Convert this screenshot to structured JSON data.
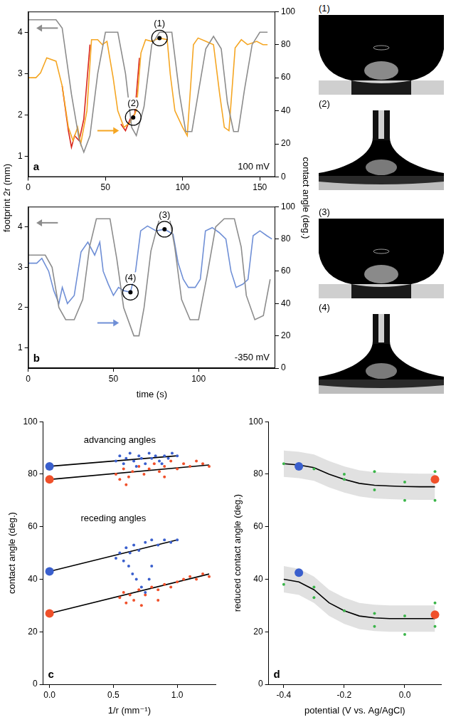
{
  "shared_axis_labels": {
    "y": "footprint 2r (mm)",
    "y2": "contact angle (deg.)"
  },
  "photos": [
    {
      "label": "(1)"
    },
    {
      "label": "(2)"
    },
    {
      "label": "(3)"
    },
    {
      "label": "(4)"
    }
  ],
  "chart_data": [
    {
      "panel": "a",
      "type": "line",
      "grid": false,
      "xlim": [
        0,
        160
      ],
      "xticks": [
        0,
        50,
        100,
        150
      ],
      "ylim": [
        0.5,
        4.5
      ],
      "yticks": [
        1,
        2,
        3,
        4
      ],
      "y2lim": [
        0,
        100
      ],
      "y2ticks": [
        0,
        20,
        40,
        60,
        80,
        100
      ],
      "annotations": [
        {
          "text": "100 mV"
        }
      ],
      "markers": [
        {
          "label": "(1)",
          "x": 85,
          "y": 84,
          "axis": "y2"
        },
        {
          "label": "(2)",
          "x": 68,
          "y": 36,
          "axis": "y2"
        }
      ],
      "series": [
        {
          "color": "#8c8c8c",
          "axis": "y",
          "x": [
            0,
            18,
            22,
            28,
            33,
            36,
            40,
            45,
            50,
            58,
            63,
            67,
            70,
            75,
            80,
            85,
            93,
            98,
            102,
            106,
            110,
            115,
            120,
            125,
            129,
            133,
            136,
            140,
            145,
            150,
            155
          ],
          "values": [
            4.3,
            4.3,
            4.1,
            2.5,
            1.4,
            1.1,
            1.5,
            3.0,
            4.0,
            4.0,
            3.0,
            1.7,
            1.5,
            2.2,
            3.7,
            4.0,
            4.0,
            2.5,
            1.6,
            1.6,
            2.5,
            3.6,
            3.9,
            3.6,
            2.3,
            1.6,
            1.6,
            2.6,
            3.7,
            4.0,
            4.0
          ]
        },
        {
          "color": "#f5a623",
          "axis": "y2",
          "x": [
            0,
            5,
            8,
            12,
            18,
            22,
            26,
            29,
            32,
            34,
            38,
            41,
            45,
            48,
            51,
            55,
            58,
            62,
            66,
            70,
            73,
            76,
            80,
            85,
            90,
            92,
            95,
            100,
            103,
            107,
            110,
            115,
            120,
            124,
            127,
            130,
            134,
            138,
            142,
            148,
            152,
            155
          ],
          "values": [
            60,
            60,
            63,
            72,
            70,
            55,
            30,
            22,
            30,
            20,
            40,
            83,
            83,
            80,
            82,
            60,
            40,
            30,
            33,
            40,
            75,
            83,
            82,
            84,
            83,
            62,
            40,
            30,
            25,
            80,
            84,
            82,
            80,
            50,
            30,
            28,
            78,
            83,
            80,
            82,
            80,
            80
          ]
        },
        {
          "color": "#d9261c",
          "axis": "y2",
          "x": [
            22,
            26,
            28,
            30,
            33,
            36,
            40,
            50,
            60,
            63,
            66,
            69,
            72
          ],
          "values": [
            55,
            28,
            18,
            25,
            22,
            35,
            80,
            null,
            32,
            28,
            35,
            38,
            72
          ]
        }
      ]
    },
    {
      "panel": "b",
      "type": "line",
      "grid": false,
      "x_label": "time (s)",
      "xlim": [
        0,
        145
      ],
      "xticks": [
        0,
        50,
        100
      ],
      "ylim": [
        0.5,
        4.5
      ],
      "yticks": [
        1,
        2,
        3,
        4
      ],
      "y2lim": [
        0,
        100
      ],
      "y2ticks": [
        0,
        20,
        40,
        60,
        80,
        100
      ],
      "annotations": [
        {
          "text": "-350 mV"
        }
      ],
      "markers": [
        {
          "label": "(3)",
          "x": 80,
          "y": 86,
          "axis": "y2"
        },
        {
          "label": "(4)",
          "x": 60,
          "y": 47,
          "axis": "y2"
        }
      ],
      "series": [
        {
          "color": "#8c8c8c",
          "axis": "y",
          "x": [
            0,
            10,
            14,
            18,
            22,
            27,
            32,
            36,
            40,
            48,
            52,
            56,
            62,
            65,
            68,
            72,
            77,
            83,
            86,
            90,
            95,
            100,
            105,
            110,
            115,
            121,
            125,
            128,
            133,
            138,
            142
          ],
          "values": [
            3.3,
            3.3,
            3.0,
            2.0,
            1.7,
            1.7,
            2.2,
            3.5,
            4.2,
            4.2,
            3.2,
            2.0,
            1.3,
            1.3,
            2.0,
            3.4,
            4.2,
            4.2,
            3.5,
            2.2,
            1.7,
            1.7,
            2.8,
            4.0,
            4.2,
            4.2,
            3.5,
            2.3,
            1.7,
            1.8,
            2.7
          ]
        },
        {
          "color": "#6f8fd6",
          "axis": "y2",
          "x": [
            0,
            5,
            8,
            12,
            15,
            18,
            20,
            23,
            27,
            31,
            35,
            39,
            42,
            44,
            47,
            50,
            53,
            56,
            60,
            63,
            66,
            70,
            75,
            80,
            85,
            88,
            91,
            94,
            98,
            101,
            104,
            108,
            112,
            116,
            119,
            122,
            126,
            129,
            132,
            136,
            140,
            143
          ],
          "values": [
            65,
            65,
            68,
            60,
            48,
            40,
            50,
            40,
            45,
            72,
            78,
            70,
            78,
            60,
            52,
            45,
            50,
            48,
            47,
            60,
            85,
            88,
            85,
            86,
            83,
            65,
            55,
            50,
            50,
            55,
            85,
            87,
            84,
            80,
            60,
            50,
            52,
            55,
            82,
            85,
            82,
            80
          ]
        }
      ]
    },
    {
      "panel": "c",
      "type": "scatter",
      "grid": false,
      "x_label": "1/r (mm⁻¹)",
      "y_label": "contact angle (deg.)",
      "xlim": [
        -0.05,
        1.3
      ],
      "xticks": [
        {
          "value": 0,
          "label": "0.0"
        },
        0.5,
        {
          "value": 1,
          "label": "1.0"
        }
      ],
      "ylim": [
        0,
        100
      ],
      "yticks": [
        0,
        20,
        40,
        60,
        80,
        100
      ],
      "annotations": [
        {
          "text": "advancing angles",
          "x": 0.55,
          "y": 93
        },
        {
          "text": "receding angles",
          "x": 0.5,
          "y": 63
        }
      ],
      "series": [
        {
          "type": "scatter",
          "marker": "dot",
          "color": "#3a5fcd",
          "x": [
            0.52,
            0.55,
            0.58,
            0.6,
            0.63,
            0.66,
            0.68,
            0.7,
            0.72,
            0.75,
            0.78,
            0.8,
            0.83,
            0.86,
            0.88,
            0.9,
            0.93,
            0.96,
            1.0
          ],
          "values": [
            85,
            87,
            84,
            86,
            88,
            85,
            83,
            87,
            86,
            84,
            88,
            86,
            87,
            85,
            84,
            87,
            86,
            88,
            87
          ]
        },
        {
          "type": "scatter",
          "marker": "dot",
          "color": "#f0502a",
          "x": [
            0.52,
            0.55,
            0.58,
            0.6,
            0.62,
            0.65,
            0.7,
            0.74,
            0.78,
            0.82,
            0.86,
            0.9,
            0.9,
            0.95,
            1.0,
            1.05,
            1.1,
            1.15,
            1.2,
            1.25
          ],
          "values": [
            80,
            78,
            82,
            76,
            79,
            81,
            83,
            80,
            82,
            84,
            81,
            83,
            79,
            85,
            82,
            84,
            83,
            85,
            84,
            83
          ]
        },
        {
          "type": "scatter",
          "marker": "dot",
          "color": "#3a5fcd",
          "x": [
            0.52,
            0.55,
            0.58,
            0.6,
            0.62,
            0.63,
            0.65,
            0.66,
            0.68,
            0.7,
            0.72,
            0.75,
            0.75,
            0.78,
            0.8,
            0.8,
            0.85,
            0.9,
            0.95,
            1.0
          ],
          "values": [
            48,
            50,
            47,
            52,
            45,
            50,
            42,
            53,
            40,
            51,
            37,
            54,
            35,
            40,
            55,
            45,
            53,
            55,
            54,
            55
          ]
        },
        {
          "type": "scatter",
          "marker": "dot",
          "color": "#f0502a",
          "x": [
            0.55,
            0.58,
            0.6,
            0.63,
            0.66,
            0.7,
            0.72,
            0.75,
            0.8,
            0.85,
            0.85,
            0.9,
            0.95,
            1.0,
            1.05,
            1.1,
            1.15,
            1.2,
            1.25
          ],
          "values": [
            33,
            35,
            31,
            34,
            32,
            36,
            30,
            34,
            37,
            36,
            32,
            38,
            37,
            39,
            40,
            41,
            40,
            42,
            41
          ]
        },
        {
          "type": "line",
          "marker": "none",
          "color": "#000000",
          "x": [
            0,
            1.0
          ],
          "values": [
            83,
            87
          ]
        },
        {
          "type": "line",
          "marker": "none",
          "color": "#000000",
          "x": [
            0,
            1.25
          ],
          "values": [
            78,
            83.5
          ]
        },
        {
          "type": "line",
          "marker": "none",
          "color": "#000000",
          "x": [
            0,
            1.0
          ],
          "values": [
            43,
            55
          ]
        },
        {
          "type": "line",
          "marker": "none",
          "color": "#000000",
          "x": [
            0,
            1.25
          ],
          "values": [
            27,
            42
          ]
        },
        {
          "type": "scatter",
          "marker": "circle",
          "color": "#3a5fcd",
          "x": [
            0,
            0
          ],
          "values": [
            83,
            43
          ]
        },
        {
          "type": "scatter",
          "marker": "circle",
          "color": "#f0502a",
          "x": [
            0,
            0
          ],
          "values": [
            78,
            27
          ]
        }
      ]
    },
    {
      "panel": "d",
      "type": "scatter",
      "grid": false,
      "x_label": "potential (V vs. Ag/AgCl)",
      "y_label": "reduced contact angle (deg.)",
      "xlim": [
        -0.45,
        0.12
      ],
      "xticks": [
        -0.4,
        -0.2,
        {
          "value": 0,
          "label": "0.0"
        }
      ],
      "ylim": [
        0,
        100
      ],
      "yticks": [
        0,
        20,
        40,
        60,
        80,
        100
      ],
      "series": [
        {
          "type": "line",
          "marker": "none",
          "color": "#000000",
          "x": [
            -0.4,
            -0.35,
            -0.3,
            -0.25,
            -0.2,
            -0.15,
            -0.1,
            -0.05,
            0,
            0.05,
            0.1
          ],
          "values": [
            84,
            83.5,
            82.5,
            80,
            78,
            76.5,
            75.8,
            75.5,
            75.3,
            75.2,
            75.2
          ],
          "band_low": [
            79,
            78.5,
            77.5,
            75,
            73,
            71.5,
            70.8,
            70.5,
            70.3,
            70.2,
            70.2
          ],
          "band_high": [
            89,
            88.5,
            87.5,
            85,
            83,
            81.5,
            80.8,
            80.5,
            80.3,
            80.2,
            80.2
          ]
        },
        {
          "type": "line",
          "marker": "none",
          "color": "#000000",
          "x": [
            -0.4,
            -0.35,
            -0.3,
            -0.25,
            -0.2,
            -0.15,
            -0.1,
            -0.05,
            0,
            0.05,
            0.1
          ],
          "values": [
            40,
            39,
            36,
            31,
            28,
            26,
            25.3,
            25,
            25,
            25,
            25
          ],
          "band_low": [
            35,
            34,
            31,
            26,
            23,
            21,
            20.3,
            20,
            20,
            20,
            20
          ],
          "band_high": [
            45,
            44,
            41,
            36,
            33,
            31,
            30.3,
            30,
            30,
            30,
            30
          ]
        },
        {
          "type": "scatter",
          "marker": "dot",
          "color": "#3bb54a",
          "x": [
            -0.4,
            -0.3,
            -0.2,
            -0.2,
            -0.1,
            -0.1,
            0,
            0,
            0.1,
            0.1,
            -0.4,
            -0.3,
            -0.3,
            -0.2,
            -0.1,
            -0.1,
            0,
            0,
            0.1,
            0.1
          ],
          "values": [
            84,
            82,
            80,
            78,
            81,
            74,
            77,
            70,
            81,
            70,
            38,
            37,
            33,
            28,
            27,
            22,
            26,
            19,
            31,
            22
          ]
        },
        {
          "type": "scatter",
          "marker": "circle",
          "color": "#3a5fcd",
          "x": [
            -0.35,
            -0.35
          ],
          "values": [
            83,
            42.5
          ]
        },
        {
          "type": "scatter",
          "marker": "circle",
          "color": "#f0502a",
          "x": [
            0.1,
            0.1
          ],
          "values": [
            78,
            26.5
          ]
        }
      ]
    }
  ]
}
